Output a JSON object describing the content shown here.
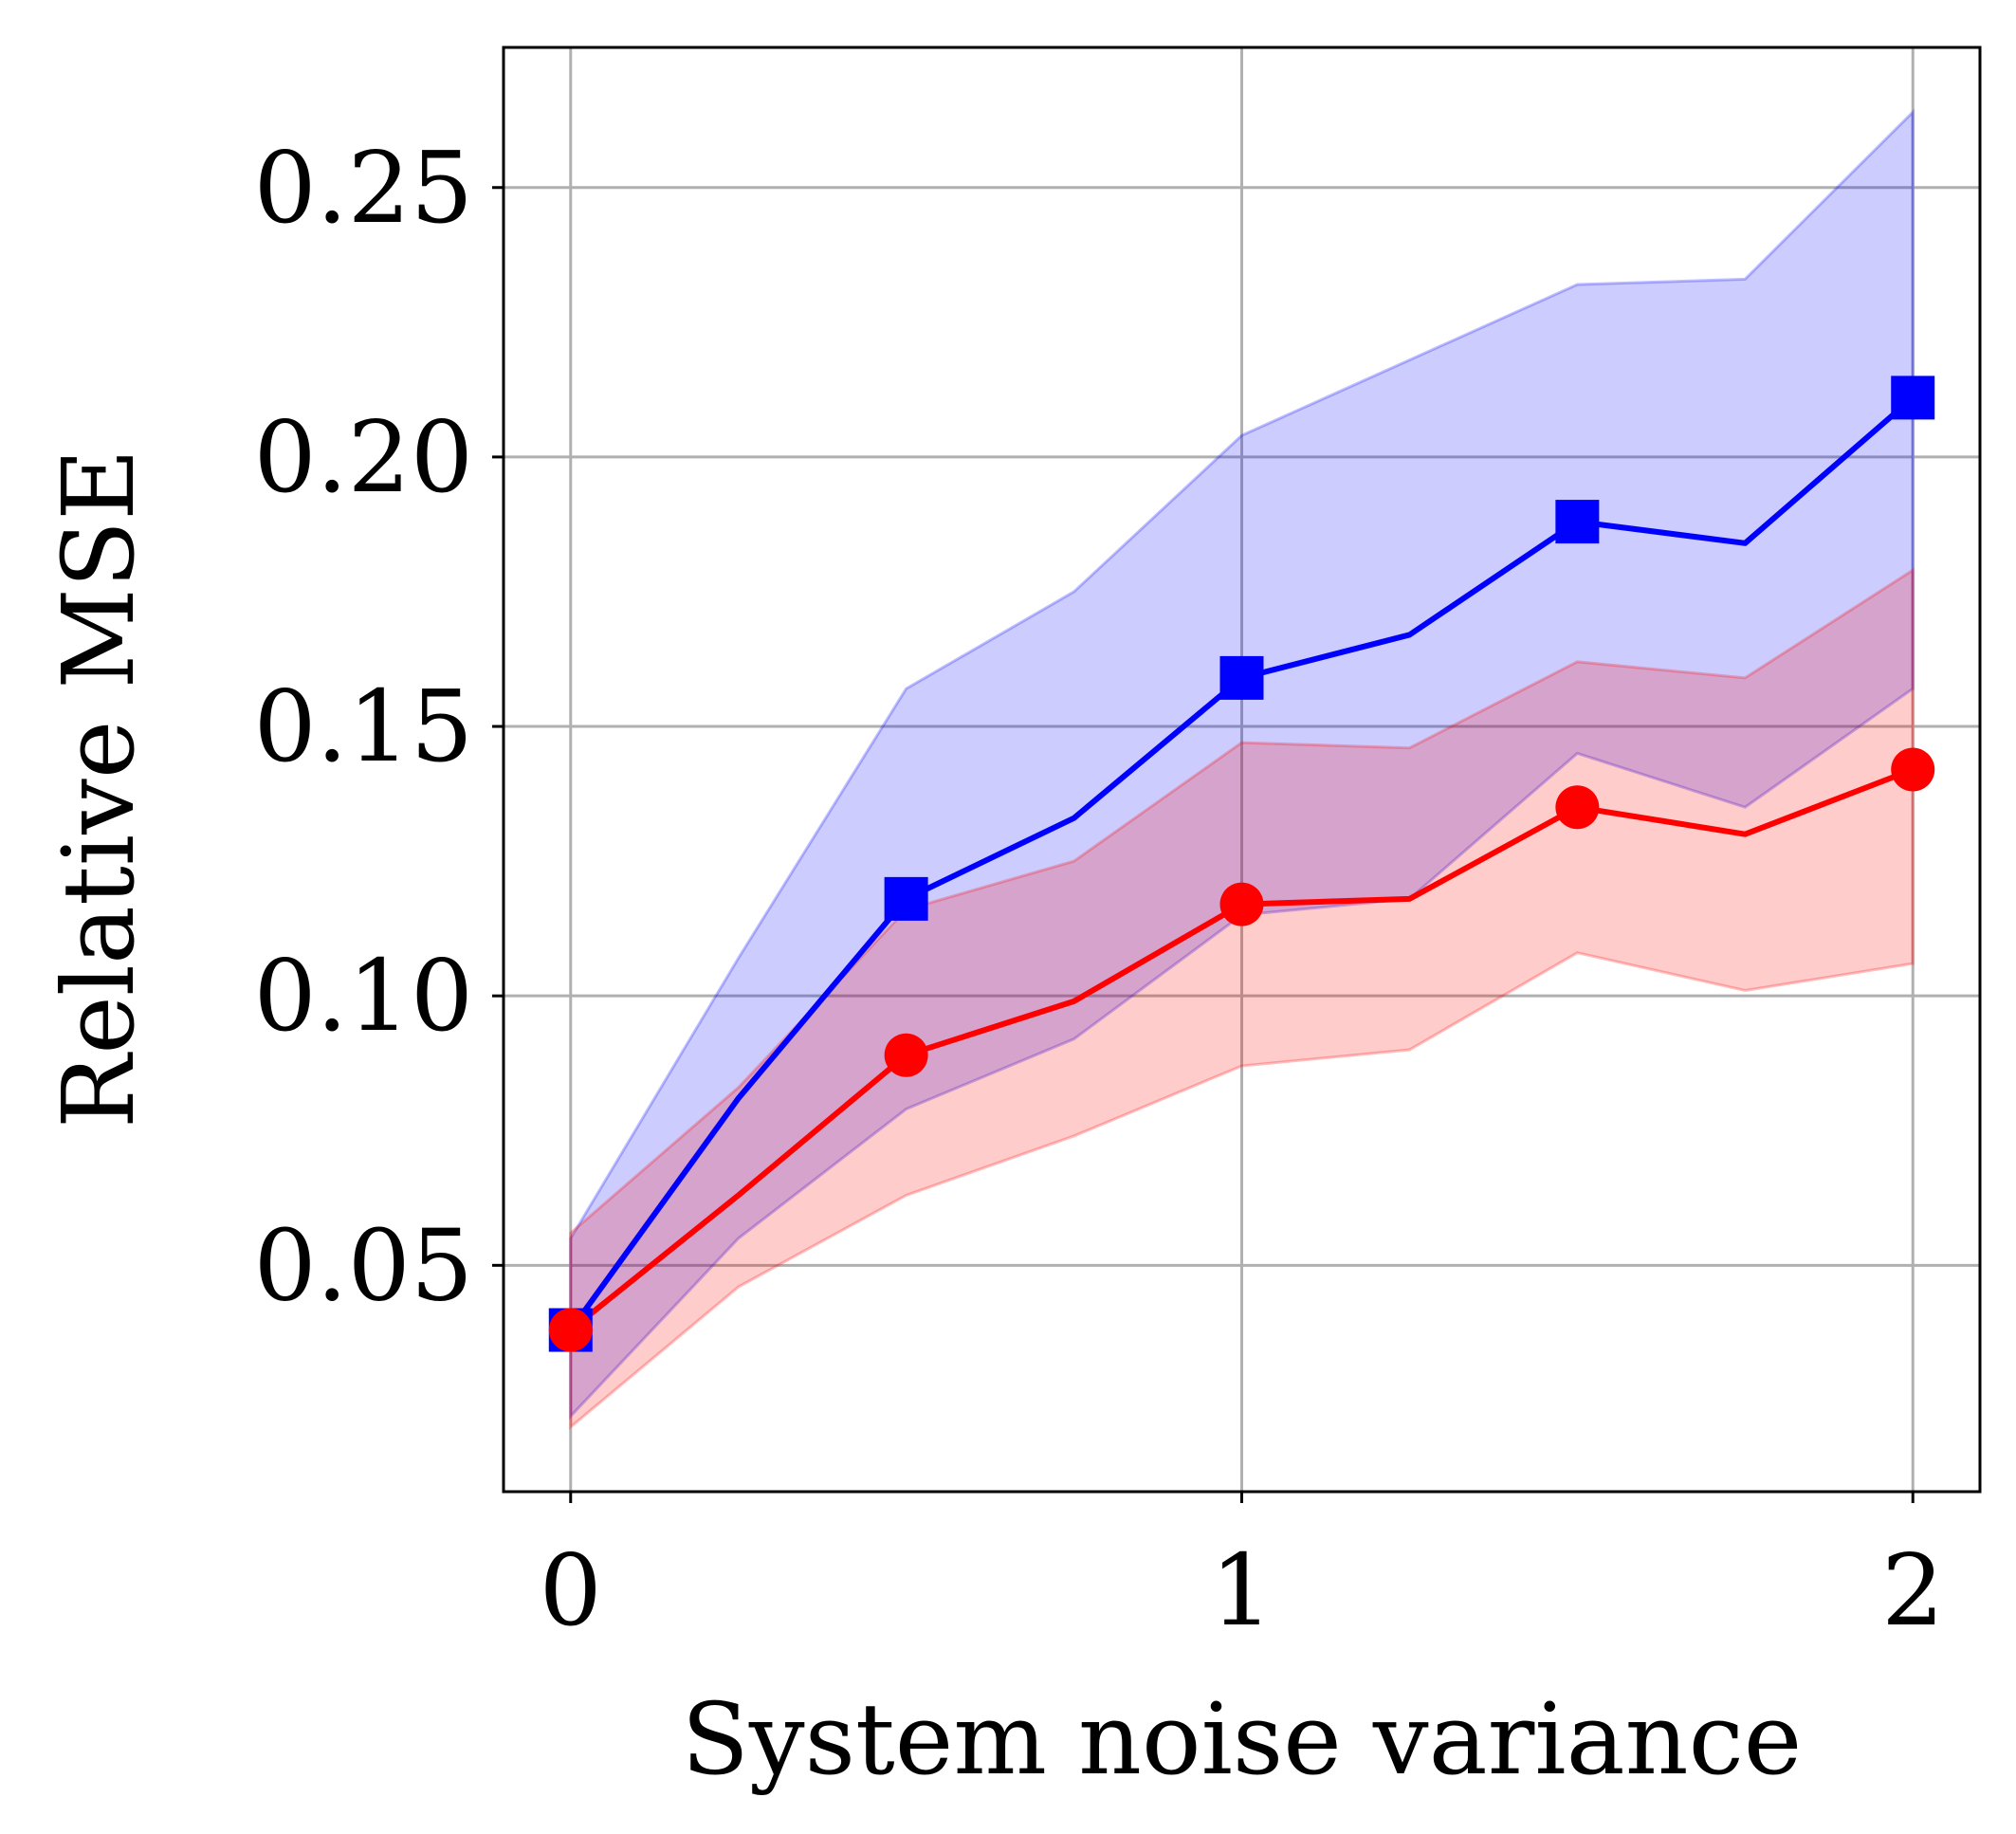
{
  "chart_data": {
    "type": "line",
    "title": "",
    "xlabel": "System noise variance",
    "ylabel": "Relative MSE",
    "xlim": [
      -0.1,
      2.1
    ],
    "ylim": [
      0.008,
      0.276
    ],
    "xticks": [
      0,
      1,
      2
    ],
    "xtick_labels": [
      "0",
      "1",
      "2"
    ],
    "yticks": [
      0.05,
      0.1,
      0.15,
      0.2,
      0.25
    ],
    "ytick_labels": [
      "0.05",
      "0.10",
      "0.15",
      "0.20",
      "0.25"
    ],
    "grid": true,
    "x": [
      0,
      0.25,
      0.5,
      0.75,
      1.0,
      1.25,
      1.5,
      1.75,
      2.0
    ],
    "series": [
      {
        "name": "blue-square",
        "color": "#0000ff",
        "marker": "square",
        "values": [
          0.038,
          0.081,
          0.118,
          0.133,
          0.159,
          0.167,
          0.188,
          0.184,
          0.211
        ],
        "band_lower": [
          0.022,
          0.055,
          0.079,
          0.092,
          0.115,
          0.118,
          0.145,
          0.135,
          0.157
        ],
        "band_upper": [
          0.055,
          0.107,
          0.157,
          0.175,
          0.204,
          0.218,
          0.232,
          0.233,
          0.264
        ],
        "marker_x": [
          0,
          0.5,
          1.0,
          1.5,
          2.0
        ]
      },
      {
        "name": "red-circle",
        "color": "#ff0000",
        "marker": "circle",
        "values": [
          0.038,
          0.063,
          0.089,
          0.099,
          0.117,
          0.118,
          0.135,
          0.13,
          0.142
        ],
        "band_lower": [
          0.02,
          0.046,
          0.063,
          0.074,
          0.087,
          0.09,
          0.108,
          0.101,
          0.106
        ],
        "band_upper": [
          0.056,
          0.083,
          0.116,
          0.125,
          0.147,
          0.146,
          0.162,
          0.159,
          0.179
        ],
        "marker_x": [
          0,
          0.5,
          1.0,
          1.5,
          2.0
        ]
      }
    ]
  }
}
